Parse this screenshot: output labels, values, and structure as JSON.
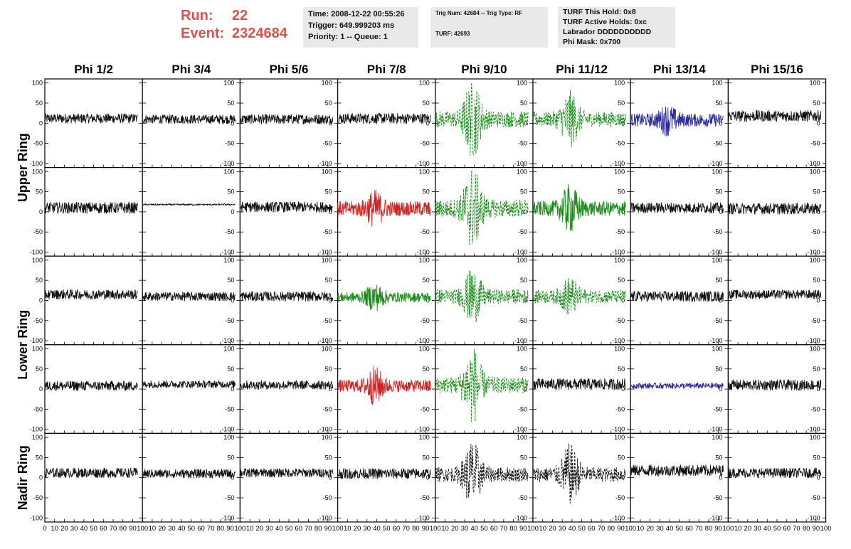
{
  "header": {
    "run_label": "Run:",
    "run_value": "22",
    "event_label": "Event:",
    "event_value": "2324684"
  },
  "info_boxes": {
    "time": "Time: 2008-12-22 00:55:26",
    "trigger": "Trigger: 649.999203 ms",
    "priority": "Priority: 1 -- Queue: 1",
    "trig_num": "Trig Num: 42684 -- Trig Type: RF",
    "turf": "TURF: 42693",
    "turf_hold": "TURF This Hold: 0x8",
    "turf_active": "TURF Active Holds: 0xc",
    "labrador": "Labrador DDDDDDDDDD",
    "phi_mask": "Phi Mask: 0x700"
  },
  "chart_data": {
    "type": "line",
    "columns": [
      "Phi 1/2",
      "Phi 3/4",
      "Phi 5/6",
      "Phi 7/8",
      "Phi 9/10",
      "Phi 11/12",
      "Phi 13/14",
      "Phi 15/16"
    ],
    "rows": [
      "Upper Ring",
      "Lower Ring",
      "Nadir Ring"
    ],
    "panel_rows": 5,
    "panel_row_groups": [
      {
        "label": "Upper Ring",
        "panels": [
          0,
          1
        ]
      },
      {
        "label": "Lower Ring",
        "panels": [
          2,
          3
        ]
      },
      {
        "label": "Nadir Ring",
        "panels": [
          4
        ]
      }
    ],
    "xlim": [
      0,
      100
    ],
    "ylim": [
      -110,
      110
    ],
    "y_ticks": [
      -100,
      -50,
      0,
      50,
      100
    ],
    "x_tick_labels_first": [
      "0",
      "10",
      "20",
      "30",
      "40",
      "50",
      "60",
      "70",
      "80",
      "90",
      "100"
    ],
    "x_tick_labels": [
      "10",
      "20",
      "30",
      "40",
      "50",
      "60",
      "70",
      "80",
      "90",
      "100"
    ],
    "colors": {
      "black": "#111111",
      "green": "#1a8c1a",
      "red": "#cc2222",
      "blue": "#2a2a99"
    },
    "panels": [
      [
        {
          "color": "black",
          "amp": 12,
          "offset": 12,
          "style": "solid",
          "burst": 0
        },
        {
          "color": "black",
          "amp": 11,
          "offset": 10,
          "style": "solid",
          "burst": 0
        },
        {
          "color": "black",
          "amp": 12,
          "offset": 10,
          "style": "solid",
          "burst": 0
        },
        {
          "color": "black",
          "amp": 13,
          "offset": 12,
          "style": "solid",
          "burst": 0
        },
        {
          "color": "green",
          "amp": 20,
          "offset": 10,
          "style": "dashed",
          "burst": 80
        },
        {
          "color": "green",
          "amp": 18,
          "offset": 10,
          "style": "dashed",
          "burst": 55
        },
        {
          "color": "blue",
          "amp": 16,
          "offset": 8,
          "style": "solid",
          "burst": 25
        },
        {
          "color": "black",
          "amp": 14,
          "offset": 18,
          "style": "solid",
          "burst": 0
        }
      ],
      [
        {
          "color": "black",
          "amp": 14,
          "offset": 10,
          "style": "solid",
          "burst": 0
        },
        {
          "color": "black",
          "amp": 2,
          "offset": 18,
          "style": "solid",
          "burst": 0
        },
        {
          "color": "black",
          "amp": 13,
          "offset": 12,
          "style": "solid",
          "burst": 0
        },
        {
          "color": "red",
          "amp": 18,
          "offset": 8,
          "style": "solid",
          "burst": 30
        },
        {
          "color": "green",
          "amp": 22,
          "offset": 8,
          "style": "dashed",
          "burst": 85
        },
        {
          "color": "green",
          "amp": 18,
          "offset": 8,
          "style": "solid",
          "burst": 45
        },
        {
          "color": "black",
          "amp": 13,
          "offset": 10,
          "style": "solid",
          "burst": 0
        },
        {
          "color": "black",
          "amp": 14,
          "offset": 8,
          "style": "solid",
          "burst": 0
        }
      ],
      [
        {
          "color": "black",
          "amp": 12,
          "offset": 15,
          "style": "solid",
          "burst": 0
        },
        {
          "color": "black",
          "amp": 11,
          "offset": 10,
          "style": "solid",
          "burst": 0
        },
        {
          "color": "black",
          "amp": 12,
          "offset": 10,
          "style": "solid",
          "burst": 0
        },
        {
          "color": "green",
          "amp": 12,
          "offset": 8,
          "style": "solid",
          "burst": 25
        },
        {
          "color": "green",
          "amp": 18,
          "offset": 10,
          "style": "dashed",
          "burst": 55
        },
        {
          "color": "green",
          "amp": 16,
          "offset": 10,
          "style": "dashed",
          "burst": 35
        },
        {
          "color": "black",
          "amp": 13,
          "offset": 10,
          "style": "solid",
          "burst": 0
        },
        {
          "color": "black",
          "amp": 11,
          "offset": 15,
          "style": "solid",
          "burst": 0
        }
      ],
      [
        {
          "color": "black",
          "amp": 12,
          "offset": 8,
          "style": "solid",
          "burst": 0
        },
        {
          "color": "black",
          "amp": 9,
          "offset": 12,
          "style": "solid",
          "burst": 0
        },
        {
          "color": "black",
          "amp": 11,
          "offset": 10,
          "style": "solid",
          "burst": 0
        },
        {
          "color": "red",
          "amp": 15,
          "offset": 8,
          "style": "solid",
          "burst": 35
        },
        {
          "color": "green",
          "amp": 20,
          "offset": 10,
          "style": "dashed",
          "burst": 80
        },
        {
          "color": "black",
          "amp": 14,
          "offset": 12,
          "style": "solid",
          "burst": 0
        },
        {
          "color": "blue",
          "amp": 7,
          "offset": 8,
          "style": "solid",
          "burst": 0
        },
        {
          "color": "black",
          "amp": 13,
          "offset": 10,
          "style": "solid",
          "burst": 0
        }
      ],
      [
        {
          "color": "black",
          "amp": 12,
          "offset": 12,
          "style": "solid",
          "burst": 0
        },
        {
          "color": "black",
          "amp": 11,
          "offset": 10,
          "style": "solid",
          "burst": 0
        },
        {
          "color": "black",
          "amp": 11,
          "offset": 12,
          "style": "solid",
          "burst": 0
        },
        {
          "color": "black",
          "amp": 13,
          "offset": 10,
          "style": "solid",
          "burst": 0
        },
        {
          "color": "black",
          "amp": 18,
          "offset": 8,
          "style": "dashed",
          "burst": 70
        },
        {
          "color": "black",
          "amp": 18,
          "offset": 8,
          "style": "dashed",
          "burst": 60
        },
        {
          "color": "black",
          "amp": 14,
          "offset": 18,
          "style": "solid",
          "burst": 0
        },
        {
          "color": "black",
          "amp": 12,
          "offset": 12,
          "style": "solid",
          "burst": 0
        }
      ]
    ]
  }
}
